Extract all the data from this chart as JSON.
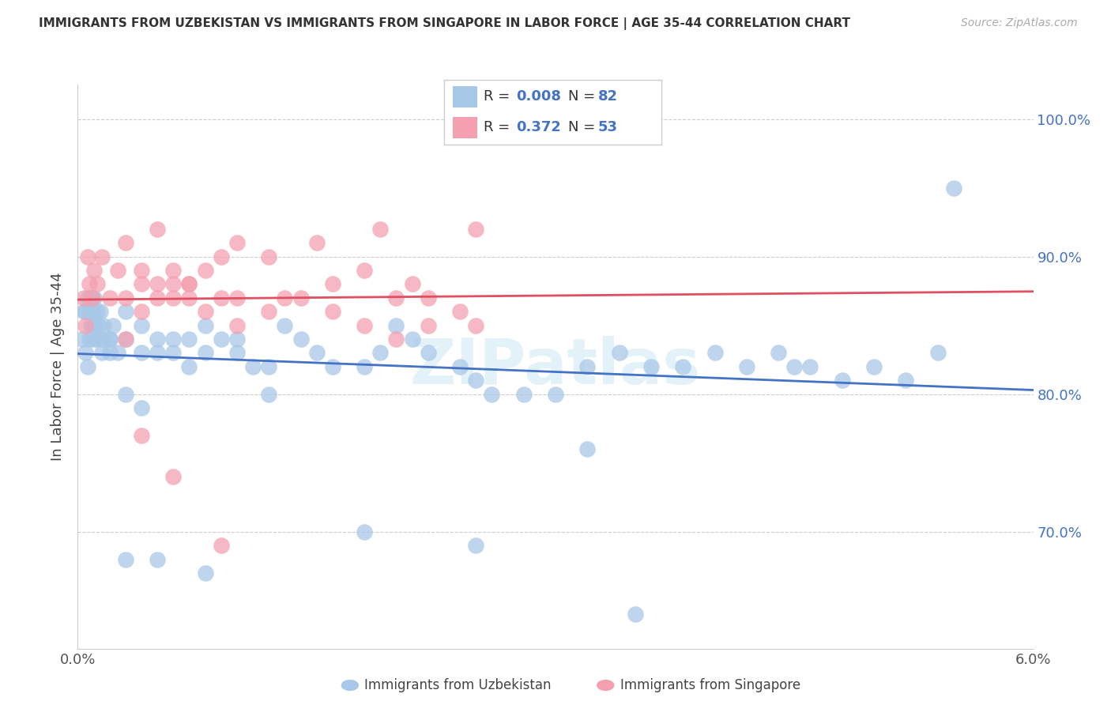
{
  "title": "IMMIGRANTS FROM UZBEKISTAN VS IMMIGRANTS FROM SINGAPORE IN LABOR FORCE | AGE 35-44 CORRELATION CHART",
  "source": "Source: ZipAtlas.com",
  "ylabel": "In Labor Force | Age 35-44",
  "ytick_labels": [
    "70.0%",
    "80.0%",
    "90.0%",
    "100.0%"
  ],
  "ytick_values": [
    0.7,
    0.8,
    0.9,
    1.0
  ],
  "xlim": [
    0.0,
    0.06
  ],
  "ylim": [
    0.615,
    1.025
  ],
  "legend_label1": "Immigrants from Uzbekistan",
  "legend_label2": "Immigrants from Singapore",
  "R1": "0.008",
  "N1": "82",
  "R2": "0.372",
  "N2": "53",
  "color_uzbekistan": "#a8c8e8",
  "color_singapore": "#f4a0b0",
  "color_uzbekistan_line": "#4472c4",
  "color_singapore_line": "#e05060",
  "color_RN": "#4472c4",
  "uzbekistan_x": [
    0.0003,
    0.0004,
    0.0005,
    0.0005,
    0.0006,
    0.0006,
    0.0007,
    0.0007,
    0.0008,
    0.0008,
    0.0009,
    0.001,
    0.001,
    0.001,
    0.001,
    0.0012,
    0.0012,
    0.0013,
    0.0014,
    0.0015,
    0.0015,
    0.0016,
    0.002,
    0.002,
    0.002,
    0.0022,
    0.0025,
    0.003,
    0.003,
    0.003,
    0.004,
    0.004,
    0.004,
    0.005,
    0.005,
    0.006,
    0.006,
    0.007,
    0.007,
    0.008,
    0.008,
    0.009,
    0.01,
    0.01,
    0.011,
    0.012,
    0.013,
    0.014,
    0.015,
    0.016,
    0.018,
    0.019,
    0.02,
    0.021,
    0.022,
    0.024,
    0.025,
    0.026,
    0.028,
    0.03,
    0.032,
    0.034,
    0.036,
    0.038,
    0.04,
    0.042,
    0.044,
    0.046,
    0.048,
    0.05,
    0.052,
    0.054,
    0.003,
    0.005,
    0.008,
    0.012,
    0.018,
    0.025,
    0.035,
    0.045,
    0.055,
    0.032
  ],
  "uzbekistan_y": [
    0.84,
    0.86,
    0.83,
    0.86,
    0.82,
    0.87,
    0.86,
    0.84,
    0.85,
    0.87,
    0.86,
    0.85,
    0.84,
    0.87,
    0.85,
    0.86,
    0.84,
    0.85,
    0.86,
    0.84,
    0.83,
    0.85,
    0.84,
    0.84,
    0.83,
    0.85,
    0.83,
    0.84,
    0.86,
    0.8,
    0.83,
    0.85,
    0.79,
    0.84,
    0.83,
    0.84,
    0.83,
    0.82,
    0.84,
    0.83,
    0.85,
    0.84,
    0.84,
    0.83,
    0.82,
    0.82,
    0.85,
    0.84,
    0.83,
    0.82,
    0.82,
    0.83,
    0.85,
    0.84,
    0.83,
    0.82,
    0.81,
    0.8,
    0.8,
    0.8,
    0.82,
    0.83,
    0.82,
    0.82,
    0.83,
    0.82,
    0.83,
    0.82,
    0.81,
    0.82,
    0.81,
    0.83,
    0.68,
    0.68,
    0.67,
    0.8,
    0.7,
    0.69,
    0.64,
    0.82,
    0.95,
    0.76
  ],
  "singapore_x": [
    0.0004,
    0.0005,
    0.0006,
    0.0007,
    0.0009,
    0.001,
    0.0012,
    0.0015,
    0.002,
    0.0025,
    0.003,
    0.003,
    0.004,
    0.004,
    0.005,
    0.005,
    0.006,
    0.006,
    0.007,
    0.007,
    0.008,
    0.009,
    0.01,
    0.01,
    0.012,
    0.013,
    0.015,
    0.016,
    0.018,
    0.019,
    0.02,
    0.021,
    0.022,
    0.024,
    0.025,
    0.003,
    0.004,
    0.005,
    0.006,
    0.007,
    0.008,
    0.009,
    0.01,
    0.012,
    0.014,
    0.016,
    0.018,
    0.02,
    0.022,
    0.025,
    0.004,
    0.006,
    0.009
  ],
  "singapore_y": [
    0.87,
    0.85,
    0.9,
    0.88,
    0.87,
    0.89,
    0.88,
    0.9,
    0.87,
    0.89,
    0.87,
    0.91,
    0.89,
    0.88,
    0.88,
    0.92,
    0.87,
    0.89,
    0.87,
    0.88,
    0.89,
    0.9,
    0.87,
    0.91,
    0.9,
    0.87,
    0.91,
    0.88,
    0.89,
    0.92,
    0.87,
    0.88,
    0.87,
    0.86,
    0.92,
    0.84,
    0.86,
    0.87,
    0.88,
    0.88,
    0.86,
    0.87,
    0.85,
    0.86,
    0.87,
    0.86,
    0.85,
    0.84,
    0.85,
    0.85,
    0.77,
    0.74,
    0.69
  ]
}
